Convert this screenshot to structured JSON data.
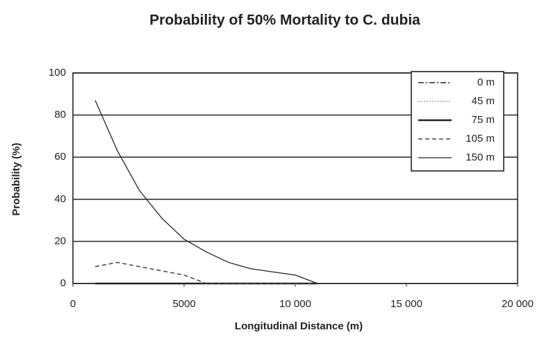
{
  "chart_data": {
    "type": "line",
    "title": "Probability of 50% Mortality to C. dubia",
    "x_label": "Longitudinal Distance (m)",
    "y_label": "Probability (%)",
    "x": [
      1000,
      2000,
      3000,
      4000,
      5000,
      6000,
      7000,
      8000,
      9000,
      10000,
      11000
    ],
    "series": [
      {
        "name": "0 m",
        "color": "#222222",
        "style": "dashdot",
        "width": 1.5,
        "values": [
          0,
          0,
          0,
          0,
          0,
          0,
          0,
          0,
          0,
          0,
          0
        ]
      },
      {
        "name": "45 m",
        "color": "#888888",
        "style": "dotted",
        "width": 1.5,
        "values": [
          0,
          0,
          0,
          0,
          0,
          0,
          0,
          0,
          0,
          0,
          0
        ]
      },
      {
        "name": "75 m",
        "color": "#222222",
        "style": "solid",
        "width": 2.5,
        "values": [
          0,
          0,
          0,
          0,
          0,
          0,
          0,
          0,
          0,
          0,
          0
        ]
      },
      {
        "name": "105 m",
        "color": "#444444",
        "style": "dashed",
        "width": 1.5,
        "values": [
          8,
          10,
          8,
          6,
          4,
          0,
          0,
          0,
          0,
          0,
          0
        ]
      },
      {
        "name": "150 m",
        "color": "#222222",
        "style": "solid",
        "width": 1.3,
        "values": [
          87,
          63,
          44,
          31,
          21,
          15,
          10,
          7,
          5.5,
          4,
          0
        ]
      }
    ],
    "xlim": [
      0,
      20000
    ],
    "xticks": [
      0,
      5000,
      {
        "value": 10000,
        "label": "10 000"
      },
      {
        "value": 15000,
        "label": "15 000"
      },
      {
        "value": 20000,
        "label": "20 000"
      }
    ],
    "ylim": [
      0,
      100
    ],
    "yticks": [
      0,
      20,
      40,
      60,
      80,
      100
    ],
    "grid": true,
    "legend": "upper-right"
  }
}
